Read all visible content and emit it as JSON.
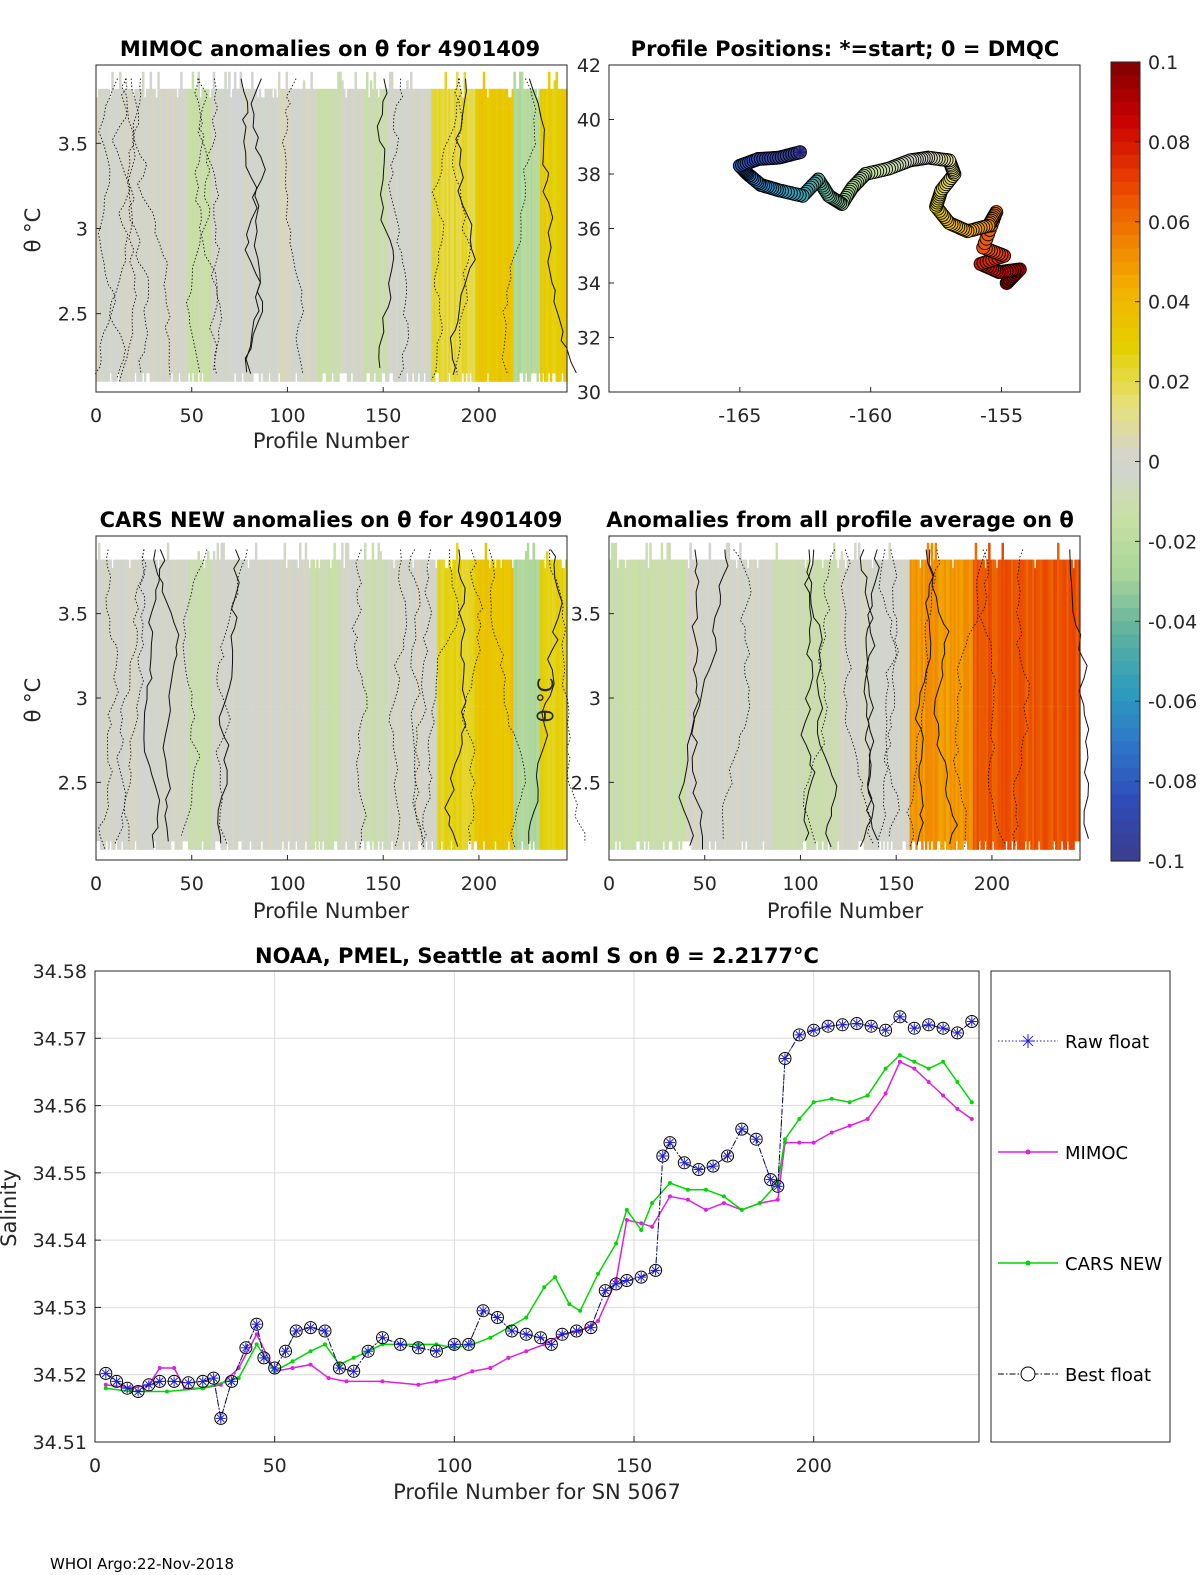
{
  "footer": "WHOI Argo:22-Nov-2018",
  "colorbar": {
    "ticks": [
      "0.1",
      "0.08",
      "0.06",
      "0.04",
      "0.02",
      "0",
      "-0.02",
      "-0.04",
      "-0.06",
      "-0.08",
      "-0.1"
    ],
    "colors": [
      "#e2c800",
      "#e6d600",
      "#ecdf20",
      "#eee060",
      "#ece8a8",
      "#d4d4d4",
      "#dbe7b6",
      "#c0dba0",
      "#a0d09e",
      "#62b6a7",
      "#3fa6b0"
    ],
    "scale_colors": [
      "#7f0000",
      "#c80000",
      "#e83a00",
      "#f07a00",
      "#f2b300",
      "#e4d000",
      "#e6e07a",
      "#d3d3d3",
      "#c8e0a3",
      "#a8d59a",
      "#5eb19e",
      "#2d9dbd",
      "#2f74c8",
      "#2f4ab6",
      "#3a3e8c"
    ]
  },
  "charts": {
    "mimoc": {
      "title": "MIMOC anomalies on θ  for 4901409",
      "xlabel": "Profile Number",
      "ylabel": "θ °C",
      "xticks": [
        "0",
        "50",
        "100",
        "150",
        "200"
      ],
      "yticks": [
        "3.5",
        "3",
        "2.5"
      ]
    },
    "positions": {
      "title": "Profile Positions: *=start; 0 = DMQC",
      "xticks": [
        "-165",
        "-160",
        "-155"
      ],
      "yticks": [
        "42",
        "40",
        "38",
        "36",
        "34",
        "32",
        "30"
      ]
    },
    "cars": {
      "title": "CARS NEW anomalies on θ for 4901409",
      "xlabel": "Profile Number",
      "ylabel": "θ °C",
      "xticks": [
        "0",
        "50",
        "100",
        "150",
        "200"
      ],
      "yticks": [
        "3.5",
        "3",
        "2.5"
      ]
    },
    "avg": {
      "title": "Anomalies from all profile average on θ",
      "xlabel": "Profile Number",
      "ylabel": "θ °C",
      "xticks": [
        "0",
        "50",
        "100",
        "150",
        "200"
      ],
      "yticks": [
        "3.5",
        "3",
        "2.5"
      ]
    },
    "salinity": {
      "title": "NOAA, PMEL, Seattle at aoml S on θ = 2.2177°C",
      "xlabel": "Profile Number for SN 5067",
      "ylabel": "Salinity",
      "xticks": [
        "0",
        "50",
        "100",
        "150",
        "200"
      ],
      "yticks": [
        "34.58",
        "34.57",
        "34.56",
        "34.55",
        "34.54",
        "34.53",
        "34.52",
        "34.51"
      ],
      "legend": [
        "Raw float",
        "MIMOC",
        "CARS NEW",
        "Best float"
      ]
    }
  },
  "chart_data": [
    {
      "type": "heatmap",
      "id": "mimoc",
      "title": "MIMOC anomalies on θ  for 4901409",
      "xlabel": "Profile Number",
      "ylabel": "θ °C",
      "xlim": [
        0,
        246
      ],
      "ylim": [
        2.04,
        3.96
      ],
      "color_range": [
        -0.1,
        0.1
      ],
      "columns": [
        {
          "x0": 0,
          "x1": 48,
          "anom": 0.0
        },
        {
          "x0": 48,
          "x1": 60,
          "anom": -0.012
        },
        {
          "x0": 60,
          "x1": 115,
          "anom": 0.0
        },
        {
          "x0": 115,
          "x1": 128,
          "anom": -0.012
        },
        {
          "x0": 128,
          "x1": 140,
          "anom": 0.0
        },
        {
          "x0": 140,
          "x1": 152,
          "anom": -0.01
        },
        {
          "x0": 152,
          "x1": 175,
          "anom": 0.0
        },
        {
          "x0": 175,
          "x1": 198,
          "anom": 0.022
        },
        {
          "x0": 198,
          "x1": 218,
          "anom": 0.032
        },
        {
          "x0": 218,
          "x1": 232,
          "anom": -0.024
        },
        {
          "x0": 232,
          "x1": 246,
          "anom": 0.03
        }
      ]
    },
    {
      "type": "scatter",
      "id": "positions",
      "title": "Profile Positions: *=start; 0 = DMQC",
      "xlim": [
        -170,
        -152
      ],
      "ylim": [
        30,
        42
      ],
      "color_by": "profile number (0-246)",
      "start": {
        "lon": -162.7,
        "lat": 38.8
      },
      "track": [
        {
          "lon": -162.7,
          "lat": 38.8
        },
        {
          "lon": -163.5,
          "lat": 38.6
        },
        {
          "lon": -164.3,
          "lat": 38.55
        },
        {
          "lon": -165.0,
          "lat": 38.3
        },
        {
          "lon": -164.7,
          "lat": 38.0
        },
        {
          "lon": -164.2,
          "lat": 37.6
        },
        {
          "lon": -163.5,
          "lat": 37.4
        },
        {
          "lon": -162.6,
          "lat": 37.2
        },
        {
          "lon": -162.0,
          "lat": 37.8
        },
        {
          "lon": -161.6,
          "lat": 37.2
        },
        {
          "lon": -161.1,
          "lat": 36.9
        },
        {
          "lon": -160.7,
          "lat": 37.5
        },
        {
          "lon": -160.2,
          "lat": 38.0
        },
        {
          "lon": -159.3,
          "lat": 38.2
        },
        {
          "lon": -158.5,
          "lat": 38.5
        },
        {
          "lon": -157.8,
          "lat": 38.6
        },
        {
          "lon": -157.0,
          "lat": 38.5
        },
        {
          "lon": -156.8,
          "lat": 38.0
        },
        {
          "lon": -157.3,
          "lat": 37.4
        },
        {
          "lon": -157.5,
          "lat": 36.8
        },
        {
          "lon": -157.0,
          "lat": 36.2
        },
        {
          "lon": -156.3,
          "lat": 35.9
        },
        {
          "lon": -155.5,
          "lat": 36.1
        },
        {
          "lon": -155.2,
          "lat": 36.6
        },
        {
          "lon": -155.7,
          "lat": 35.3
        },
        {
          "lon": -154.9,
          "lat": 35.0
        },
        {
          "lon": -155.8,
          "lat": 34.7
        },
        {
          "lon": -155.1,
          "lat": 34.4
        },
        {
          "lon": -154.3,
          "lat": 34.5
        },
        {
          "lon": -154.8,
          "lat": 34.0
        }
      ]
    },
    {
      "type": "heatmap",
      "id": "cars",
      "title": "CARS NEW anomalies on θ for 4901409",
      "xlabel": "Profile Number",
      "ylabel": "θ °C",
      "xlim": [
        0,
        246
      ],
      "ylim": [
        2.04,
        3.96
      ],
      "color_range": [
        -0.1,
        0.1
      ],
      "columns": [
        {
          "x0": 0,
          "x1": 48,
          "anom": 0.0
        },
        {
          "x0": 48,
          "x1": 60,
          "anom": -0.012
        },
        {
          "x0": 60,
          "x1": 112,
          "anom": 0.0
        },
        {
          "x0": 112,
          "x1": 128,
          "anom": -0.012
        },
        {
          "x0": 128,
          "x1": 140,
          "anom": 0.0
        },
        {
          "x0": 140,
          "x1": 152,
          "anom": -0.01
        },
        {
          "x0": 152,
          "x1": 178,
          "anom": 0.0
        },
        {
          "x0": 178,
          "x1": 198,
          "anom": 0.026
        },
        {
          "x0": 198,
          "x1": 218,
          "anom": 0.034
        },
        {
          "x0": 218,
          "x1": 232,
          "anom": -0.026
        },
        {
          "x0": 232,
          "x1": 246,
          "anom": 0.028
        }
      ]
    },
    {
      "type": "heatmap",
      "id": "avg",
      "title": "Anomalies from all profile average on θ",
      "xlabel": "Profile Number",
      "ylabel": "θ °C",
      "xlim": [
        0,
        246
      ],
      "ylim": [
        2.04,
        3.96
      ],
      "color_range": [
        -0.1,
        0.1
      ],
      "columns": [
        {
          "x0": 0,
          "x1": 40,
          "anom": -0.012
        },
        {
          "x0": 40,
          "x1": 85,
          "anom": 0.0
        },
        {
          "x0": 85,
          "x1": 120,
          "anom": -0.01
        },
        {
          "x0": 120,
          "x1": 157,
          "anom": 0.0
        },
        {
          "x0": 157,
          "x1": 190,
          "anom": 0.05
        },
        {
          "x0": 190,
          "x1": 246,
          "anom": 0.065
        }
      ]
    },
    {
      "type": "line",
      "id": "salinity",
      "title": "NOAA, PMEL, Seattle at aoml S on θ = 2.2177°C",
      "xlabel": "Profile Number for SN 5067",
      "ylabel": "Salinity",
      "xlim": [
        0,
        246
      ],
      "ylim": [
        34.51,
        34.58
      ],
      "series": [
        {
          "name": "Raw float",
          "color": "#1f1fd6",
          "x": [
            3,
            6,
            9,
            12,
            15,
            18,
            22,
            26,
            30,
            33,
            35,
            38,
            42,
            45,
            47,
            50,
            53,
            56,
            60,
            64,
            68,
            72,
            76,
            80,
            85,
            90,
            95,
            100,
            104,
            108,
            112,
            116,
            120,
            124,
            127,
            130,
            134,
            138,
            142,
            145,
            148,
            152,
            156,
            158,
            160,
            164,
            168,
            172,
            176,
            180,
            184,
            188,
            190,
            192,
            196,
            200,
            204,
            208,
            212,
            216,
            220,
            224,
            228,
            232,
            236,
            240,
            244
          ],
          "y": [
            34.5202,
            34.519,
            34.518,
            34.5175,
            34.5185,
            34.519,
            34.519,
            34.5188,
            34.519,
            34.5195,
            34.5135,
            34.519,
            34.524,
            34.5275,
            34.5225,
            34.521,
            34.5235,
            34.5265,
            34.527,
            34.5265,
            34.521,
            34.5205,
            34.5235,
            34.5255,
            34.5245,
            34.524,
            34.5235,
            34.5245,
            34.5245,
            34.5295,
            34.5285,
            34.5265,
            34.526,
            34.5255,
            34.5245,
            34.526,
            34.5265,
            34.527,
            34.5325,
            34.5335,
            34.534,
            34.5345,
            34.5355,
            34.5525,
            34.5545,
            34.5515,
            34.5505,
            34.551,
            34.5525,
            34.5565,
            34.555,
            34.549,
            34.548,
            34.567,
            34.5705,
            34.5712,
            34.5718,
            34.572,
            34.5722,
            34.5718,
            34.5712,
            34.5732,
            34.5715,
            34.572,
            34.5715,
            34.5708,
            34.5725
          ]
        },
        {
          "name": "MIMOC",
          "color": "#e020e0",
          "x": [
            3,
            10,
            15,
            18,
            22,
            25,
            30,
            35,
            40,
            45,
            50,
            55,
            60,
            65,
            70,
            80,
            90,
            95,
            100,
            105,
            110,
            115,
            120,
            125,
            130,
            135,
            140,
            145,
            148,
            152,
            155,
            160,
            165,
            170,
            175,
            180,
            185,
            190,
            192,
            196,
            200,
            205,
            210,
            215,
            220,
            224,
            228,
            232,
            236,
            240,
            244
          ],
          "y": [
            34.5185,
            34.518,
            34.5185,
            34.521,
            34.521,
            34.518,
            34.518,
            34.5185,
            34.521,
            34.526,
            34.5205,
            34.521,
            34.5215,
            34.5195,
            34.519,
            34.519,
            34.5185,
            34.519,
            34.5195,
            34.5205,
            34.521,
            34.5225,
            34.5235,
            34.5245,
            34.526,
            34.5265,
            34.528,
            34.534,
            34.543,
            34.5425,
            34.542,
            34.5465,
            34.546,
            34.5445,
            34.5455,
            34.5445,
            34.5455,
            34.546,
            34.5545,
            34.5545,
            34.5545,
            34.556,
            34.557,
            34.558,
            34.5618,
            34.5665,
            34.5655,
            34.5635,
            34.5615,
            34.5595,
            34.558
          ]
        },
        {
          "name": "CARS NEW",
          "color": "#00d800",
          "x": [
            3,
            10,
            20,
            30,
            40,
            45,
            50,
            55,
            60,
            64,
            68,
            72,
            76,
            80,
            90,
            95,
            100,
            105,
            110,
            115,
            120,
            125,
            128,
            132,
            135,
            140,
            145,
            148,
            152,
            155,
            160,
            165,
            170,
            175,
            180,
            185,
            190,
            192,
            196,
            200,
            205,
            210,
            215,
            220,
            224,
            228,
            232,
            236,
            240,
            244
          ],
          "y": [
            34.518,
            34.5175,
            34.5175,
            34.518,
            34.5195,
            34.5245,
            34.5205,
            34.522,
            34.5235,
            34.5245,
            34.5215,
            34.5225,
            34.5235,
            34.5245,
            34.5245,
            34.5245,
            34.524,
            34.5245,
            34.5255,
            34.527,
            34.5285,
            34.533,
            34.5345,
            34.5305,
            34.5295,
            34.535,
            34.5395,
            34.5445,
            34.5415,
            34.5455,
            34.5485,
            34.5475,
            34.5475,
            34.5465,
            34.5445,
            34.5455,
            34.5485,
            34.555,
            34.558,
            34.5605,
            34.561,
            34.5605,
            34.5615,
            34.5655,
            34.5675,
            34.5665,
            34.5655,
            34.5665,
            34.5635,
            34.5605
          ]
        },
        {
          "name": "Best float",
          "color": "#000000",
          "x": [
            3,
            6,
            9,
            12,
            15,
            18,
            22,
            26,
            30,
            33,
            35,
            38,
            42,
            45,
            47,
            50,
            53,
            56,
            60,
            64,
            68,
            72,
            76,
            80,
            85,
            90,
            95,
            100,
            104,
            108,
            112,
            116,
            120,
            124,
            127,
            130,
            134,
            138,
            142,
            145,
            148,
            152,
            156,
            158,
            160,
            164,
            168,
            172,
            176,
            180,
            184,
            188,
            190,
            192,
            196,
            200,
            204,
            208,
            212,
            216,
            220,
            224,
            228,
            232,
            236,
            240,
            244
          ],
          "y": [
            34.5202,
            34.519,
            34.518,
            34.5175,
            34.5185,
            34.519,
            34.519,
            34.5188,
            34.519,
            34.5195,
            34.5135,
            34.519,
            34.524,
            34.5275,
            34.5225,
            34.521,
            34.5235,
            34.5265,
            34.527,
            34.5265,
            34.521,
            34.5205,
            34.5235,
            34.5255,
            34.5245,
            34.524,
            34.5235,
            34.5245,
            34.5245,
            34.5295,
            34.5285,
            34.5265,
            34.526,
            34.5255,
            34.5245,
            34.526,
            34.5265,
            34.527,
            34.5325,
            34.5335,
            34.534,
            34.5345,
            34.5355,
            34.5525,
            34.5545,
            34.5515,
            34.5505,
            34.551,
            34.5525,
            34.5565,
            34.555,
            34.549,
            34.548,
            34.567,
            34.5705,
            34.5712,
            34.5718,
            34.572,
            34.5722,
            34.5718,
            34.5712,
            34.5732,
            34.5715,
            34.572,
            34.5715,
            34.5708,
            34.5725
          ]
        }
      ]
    }
  ]
}
